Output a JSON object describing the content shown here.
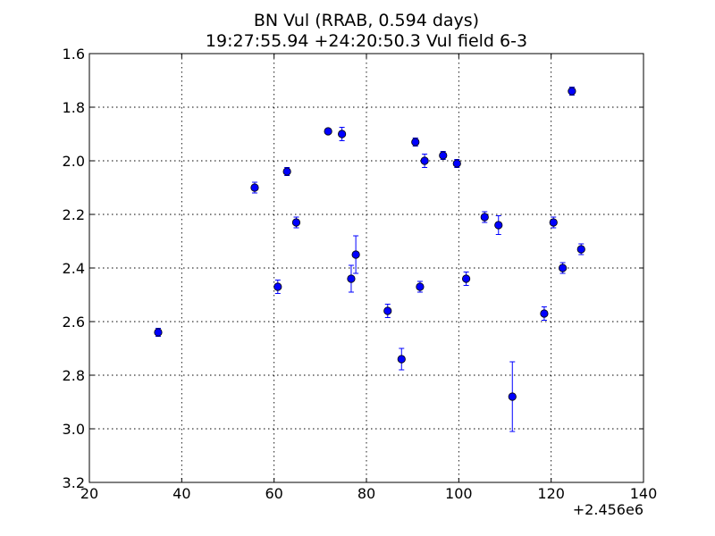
{
  "chart_data": {
    "type": "scatter",
    "title": "BN Vul (RRAB, 0.594 days)",
    "subtitle": "19:27:55.94 +24:20:50.3 Vul field 6-3",
    "xlabel": "",
    "ylabel": "",
    "x_offset_label": "+2.456e6",
    "xlim": [
      20,
      140
    ],
    "ylim": [
      3.2,
      1.6
    ],
    "y_inverted": true,
    "grid": true,
    "x_ticks": [
      20,
      40,
      60,
      80,
      100,
      120,
      140
    ],
    "x_tick_labels": [
      "20",
      "40",
      "60",
      "80",
      "100",
      "120",
      "140"
    ],
    "y_ticks": [
      1.6,
      1.8,
      2.0,
      2.2,
      2.4,
      2.6,
      2.8,
      3.0,
      3.2
    ],
    "y_tick_labels": [
      "1.6",
      "1.8",
      "2.0",
      "2.2",
      "2.4",
      "2.6",
      "2.8",
      "3.0",
      "3.2"
    ],
    "marker": "circle",
    "marker_color": "#0000ff",
    "errorbar_color": "#0000ff",
    "points": [
      {
        "x": 34.9,
        "y": 2.64,
        "err": 0.015
      },
      {
        "x": 55.8,
        "y": 2.1,
        "err": 0.02
      },
      {
        "x": 60.8,
        "y": 2.47,
        "err": 0.025
      },
      {
        "x": 62.8,
        "y": 2.04,
        "err": 0.015
      },
      {
        "x": 64.8,
        "y": 2.23,
        "err": 0.02
      },
      {
        "x": 71.7,
        "y": 1.89,
        "err": 0.01
      },
      {
        "x": 74.7,
        "y": 1.9,
        "err": 0.025
      },
      {
        "x": 76.7,
        "y": 2.44,
        "err": 0.05
      },
      {
        "x": 77.7,
        "y": 2.35,
        "err": 0.07
      },
      {
        "x": 84.6,
        "y": 2.56,
        "err": 0.025
      },
      {
        "x": 87.6,
        "y": 2.74,
        "err": 0.04
      },
      {
        "x": 90.6,
        "y": 1.93,
        "err": 0.015
      },
      {
        "x": 91.6,
        "y": 2.47,
        "err": 0.02
      },
      {
        "x": 92.6,
        "y": 2.0,
        "err": 0.025
      },
      {
        "x": 96.6,
        "y": 1.98,
        "err": 0.015
      },
      {
        "x": 99.6,
        "y": 2.01,
        "err": 0.015
      },
      {
        "x": 101.6,
        "y": 2.44,
        "err": 0.025
      },
      {
        "x": 105.6,
        "y": 2.21,
        "err": 0.02
      },
      {
        "x": 108.6,
        "y": 2.24,
        "err": 0.035
      },
      {
        "x": 111.6,
        "y": 2.88,
        "err": 0.13
      },
      {
        "x": 118.5,
        "y": 2.57,
        "err": 0.025
      },
      {
        "x": 120.5,
        "y": 2.23,
        "err": 0.02
      },
      {
        "x": 122.5,
        "y": 2.4,
        "err": 0.02
      },
      {
        "x": 124.5,
        "y": 1.74,
        "err": 0.015
      },
      {
        "x": 126.5,
        "y": 2.33,
        "err": 0.02
      }
    ]
  }
}
